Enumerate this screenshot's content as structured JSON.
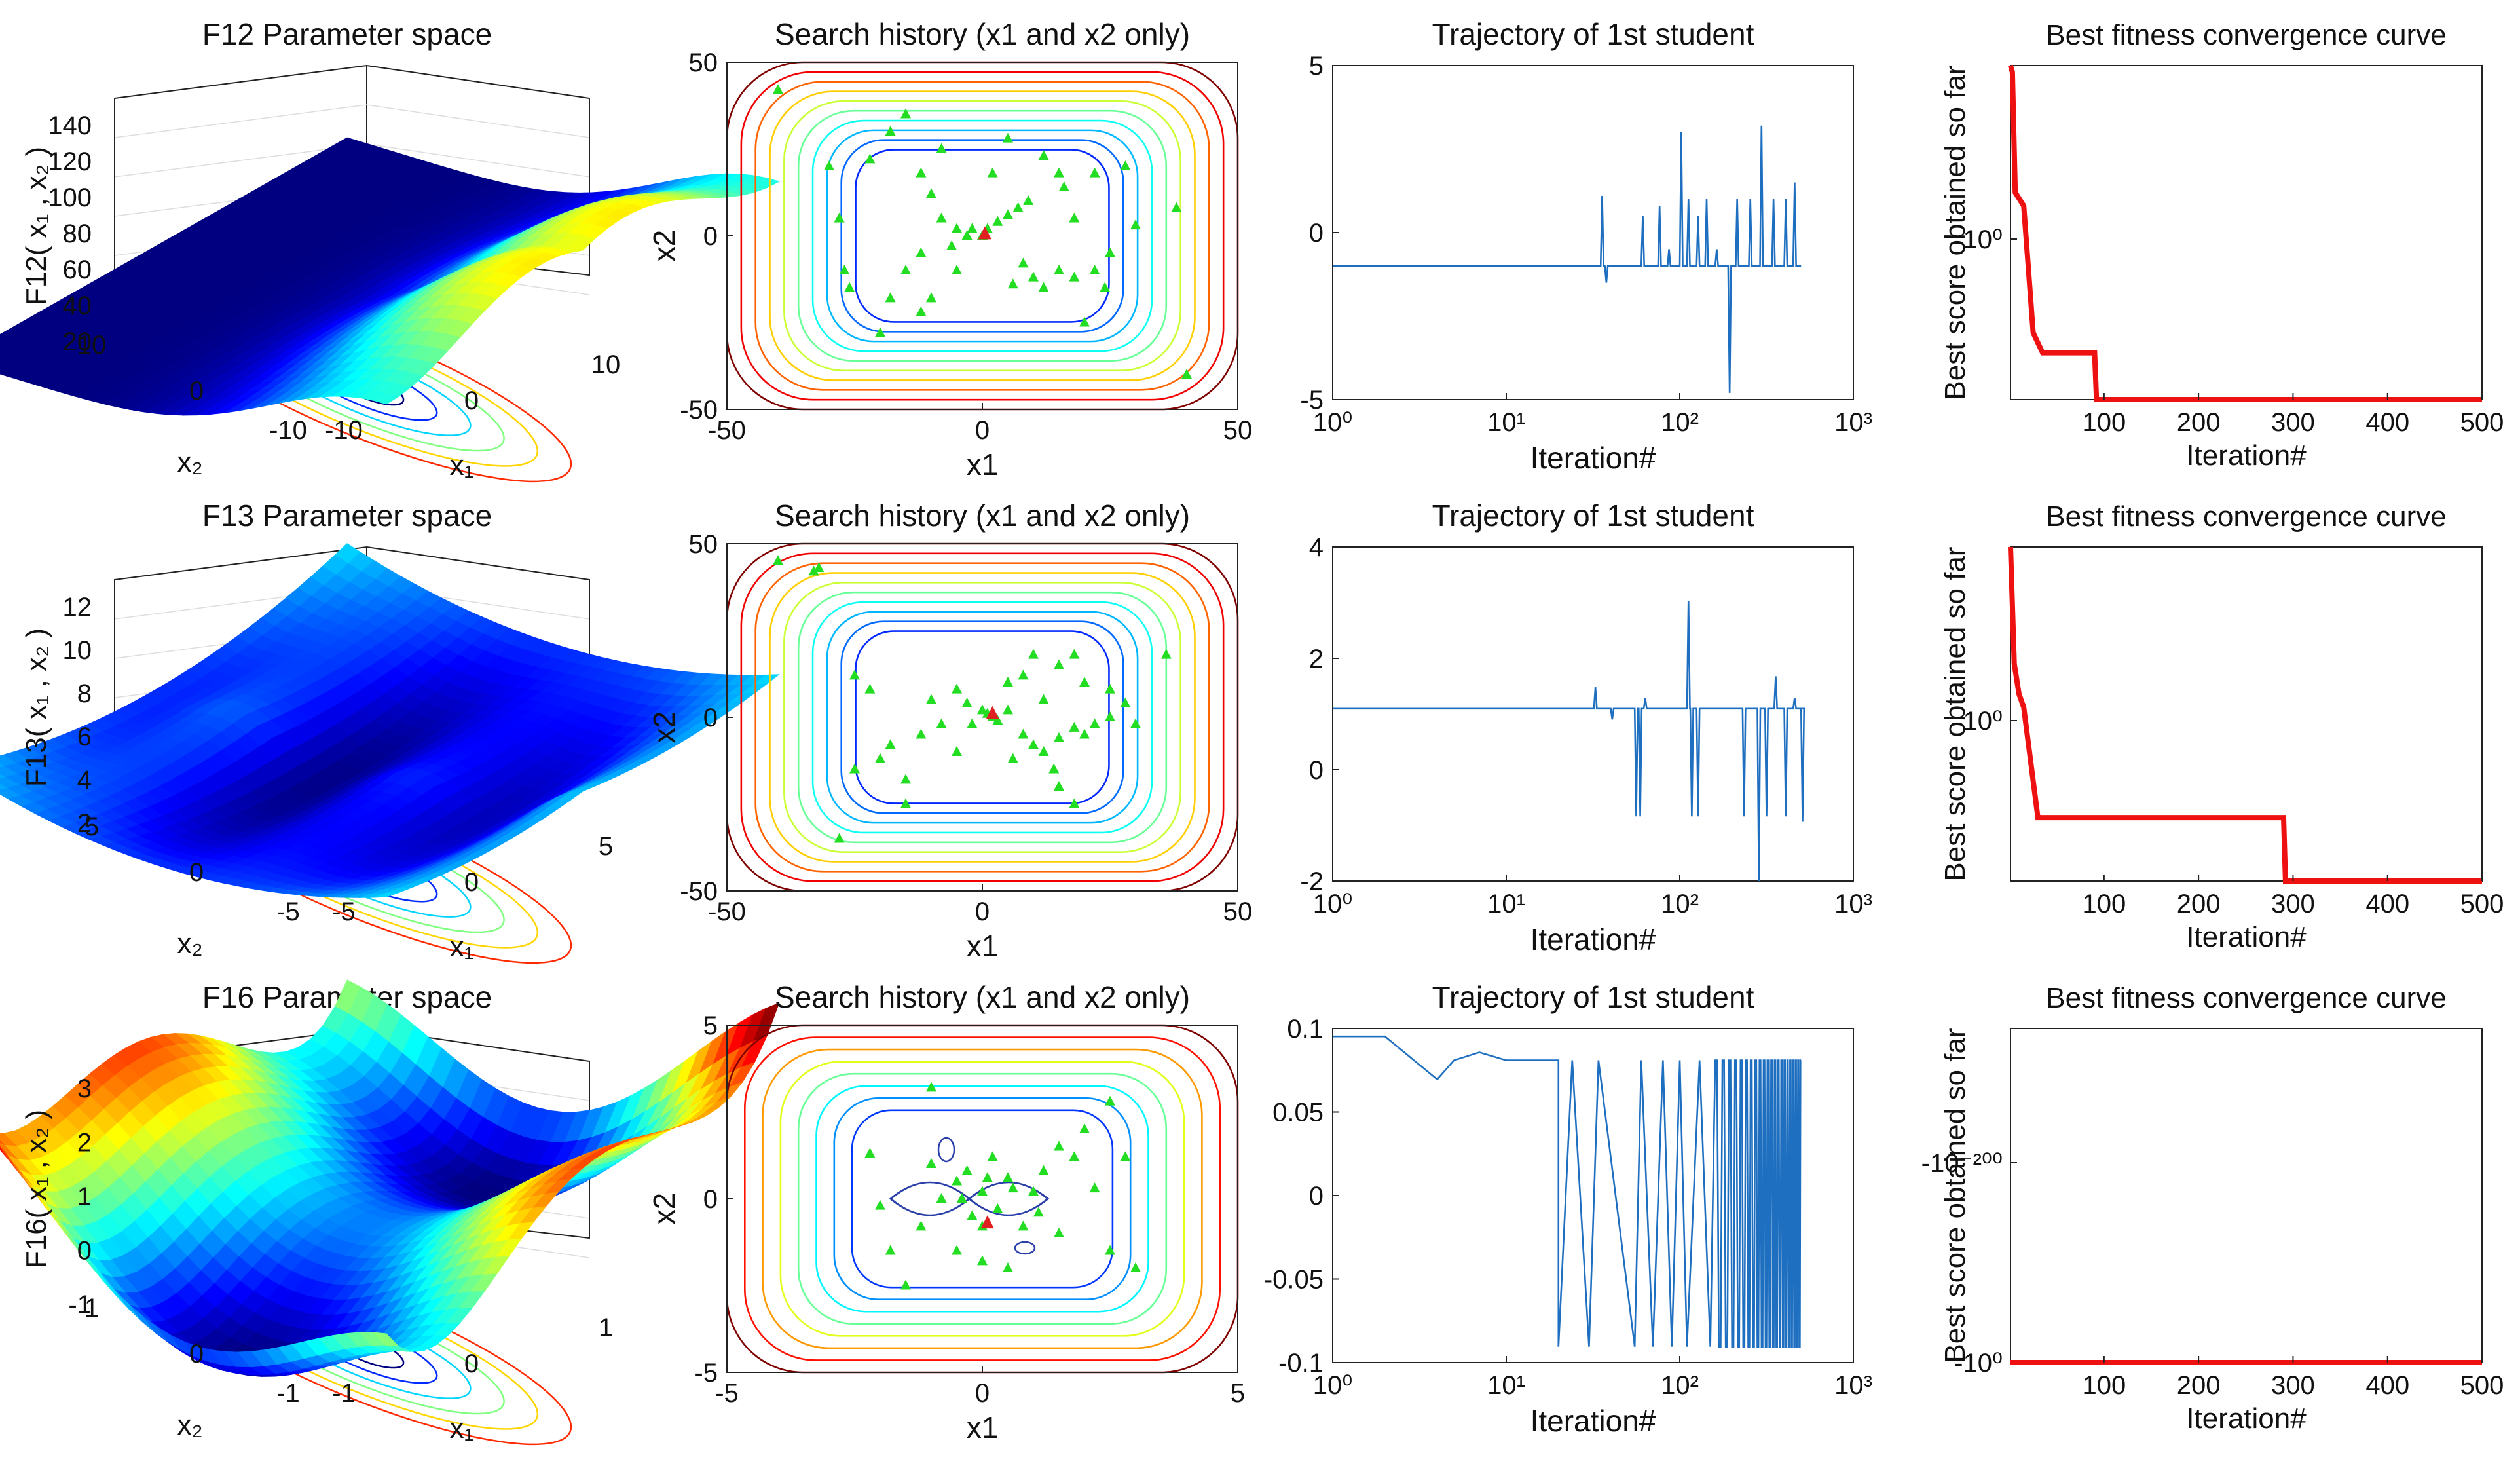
{
  "chart_data": [
    {
      "type": "surface",
      "title": "F12 Parameter space",
      "zlabel": "F12( x₁ , x₂ )",
      "xlabel": "x₁",
      "ylabel": "x₂",
      "zticks": [
        "140",
        "120",
        "100",
        "80",
        "60",
        "40",
        "20"
      ],
      "xticks": [
        "-10",
        "0",
        "10"
      ],
      "yticks": [
        "10",
        "0",
        "-10"
      ],
      "zrange": [
        0,
        140
      ],
      "palette": "jet"
    },
    {
      "type": "scatter",
      "title": "Search history (x1 and x2 only)",
      "xlabel": "x1",
      "ylabel": "x2",
      "xlim": [
        -50,
        50
      ],
      "ylim": [
        -50,
        50
      ],
      "xticks": [
        "-50",
        "0",
        "50"
      ],
      "yticks": [
        "50",
        "0",
        "-50"
      ],
      "points": [
        [
          -40,
          42
        ],
        [
          -15,
          35
        ],
        [
          -18,
          30
        ],
        [
          -22,
          22
        ],
        [
          -28,
          5
        ],
        [
          -27,
          -10
        ],
        [
          -26,
          -15
        ],
        [
          -12,
          18
        ],
        [
          -10,
          12
        ],
        [
          -12,
          -5
        ],
        [
          -8,
          5
        ],
        [
          -5,
          -10
        ],
        [
          -20,
          -28
        ],
        [
          5,
          28
        ],
        [
          12,
          23
        ],
        [
          15,
          18
        ],
        [
          16,
          14
        ],
        [
          18,
          5
        ],
        [
          22,
          18
        ],
        [
          25,
          -5
        ],
        [
          28,
          20
        ],
        [
          -5,
          2
        ],
        [
          -3,
          0
        ],
        [
          -2,
          2
        ],
        [
          0,
          0
        ],
        [
          1,
          2
        ],
        [
          3,
          4
        ],
        [
          5,
          6
        ],
        [
          7,
          8
        ],
        [
          9,
          10
        ],
        [
          -6,
          -3
        ],
        [
          8,
          -8
        ],
        [
          10,
          -12
        ],
        [
          12,
          -15
        ],
        [
          15,
          -10
        ],
        [
          18,
          -12
        ],
        [
          22,
          -10
        ],
        [
          24,
          -15
        ],
        [
          20,
          -25
        ],
        [
          -15,
          -10
        ],
        [
          -10,
          -18
        ],
        [
          -18,
          -18
        ],
        [
          38,
          8
        ],
        [
          40,
          -40
        ],
        [
          -8,
          25
        ],
        [
          2,
          18
        ],
        [
          -12,
          -22
        ],
        [
          6,
          -14
        ],
        [
          30,
          3
        ],
        [
          -30,
          20
        ]
      ],
      "best": [
        [
          0.5,
          0.5
        ]
      ],
      "contours": 10
    },
    {
      "type": "line",
      "title": "Trajectory of 1st student",
      "xlabel": "Iteration#",
      "xscale": "log",
      "xlim": [
        1,
        1000
      ],
      "ylim": [
        -5,
        5
      ],
      "xticks": [
        "10⁰",
        "10¹",
        "10²",
        "10³"
      ],
      "yticks": [
        "5",
        "0",
        "-5"
      ],
      "baseline": -1,
      "spikes": [
        [
          35,
          1.1
        ],
        [
          37,
          -1.5
        ],
        [
          60,
          0.5
        ],
        [
          75,
          0.8
        ],
        [
          85,
          -0.5
        ],
        [
          100,
          3
        ],
        [
          110,
          1
        ],
        [
          125,
          0.5
        ],
        [
          140,
          1
        ],
        [
          160,
          -0.5
        ],
        [
          190,
          -4.8
        ],
        [
          210,
          1
        ],
        [
          250,
          1
        ],
        [
          290,
          3.2
        ],
        [
          340,
          1
        ],
        [
          400,
          1
        ],
        [
          450,
          1.5
        ]
      ]
    },
    {
      "type": "line",
      "title": "Best fitness convergence curve",
      "xlabel": "Iteration#",
      "ylabel": "Best score obtained so far",
      "xlim": [
        0,
        500
      ],
      "xticks": [
        "100",
        "200",
        "300",
        "400",
        "500"
      ],
      "ytick_label": "10⁰",
      "steps": [
        [
          1,
          1.0
        ],
        [
          3,
          0.98
        ],
        [
          6,
          0.62
        ],
        [
          15,
          0.58
        ],
        [
          25,
          0.2
        ],
        [
          35,
          0.14
        ],
        [
          90,
          0.14
        ],
        [
          92,
          0.0
        ],
        [
          500,
          0.0
        ]
      ]
    },
    {
      "type": "surface",
      "title": "F13 Parameter space",
      "zlabel": "F13( x₁ , x₂ )",
      "xlabel": "x₁",
      "ylabel": "x₂",
      "zticks": [
        "12",
        "10",
        "8",
        "6",
        "4",
        "2"
      ],
      "xticks": [
        "-5",
        "0",
        "5"
      ],
      "yticks": [
        "5",
        "0",
        "-5"
      ],
      "zrange": [
        0,
        12
      ],
      "palette": "jet"
    },
    {
      "type": "scatter",
      "title": "Search history (x1 and x2 only)",
      "xlabel": "x1",
      "ylabel": "x2",
      "xlim": [
        -50,
        50
      ],
      "ylim": [
        -50,
        50
      ],
      "xticks": [
        "-50",
        "0",
        "50"
      ],
      "yticks": [
        "50",
        "0",
        "-50"
      ],
      "points": [
        [
          -40,
          45
        ],
        [
          -33,
          42
        ],
        [
          -32,
          43
        ],
        [
          -25,
          12
        ],
        [
          -22,
          8
        ],
        [
          -10,
          5
        ],
        [
          -8,
          -2
        ],
        [
          -12,
          -5
        ],
        [
          -18,
          -8
        ],
        [
          -25,
          -15
        ],
        [
          -20,
          -12
        ],
        [
          -15,
          -18
        ],
        [
          -5,
          -10
        ],
        [
          0,
          2
        ],
        [
          2,
          0
        ],
        [
          -2,
          -2
        ],
        [
          1,
          1
        ],
        [
          3,
          -1
        ],
        [
          5,
          2
        ],
        [
          8,
          -5
        ],
        [
          10,
          -8
        ],
        [
          12,
          -10
        ],
        [
          15,
          -6
        ],
        [
          18,
          -3
        ],
        [
          20,
          -5
        ],
        [
          22,
          -2
        ],
        [
          25,
          0
        ],
        [
          28,
          4
        ],
        [
          30,
          -2
        ],
        [
          15,
          -20
        ],
        [
          18,
          -25
        ],
        [
          14,
          -15
        ],
        [
          8,
          12
        ],
        [
          10,
          18
        ],
        [
          15,
          15
        ],
        [
          18,
          18
        ],
        [
          20,
          10
        ],
        [
          25,
          8
        ],
        [
          36,
          18
        ],
        [
          -28,
          -35
        ],
        [
          -15,
          -25
        ],
        [
          -5,
          8
        ],
        [
          5,
          10
        ],
        [
          12,
          5
        ],
        [
          -3,
          4
        ],
        [
          6,
          -12
        ]
      ],
      "best": [
        [
          2,
          1
        ]
      ],
      "contours": 10
    },
    {
      "type": "line",
      "title": "Trajectory of 1st student",
      "xlabel": "Iteration#",
      "xscale": "log",
      "xlim": [
        1,
        1000
      ],
      "ylim": [
        -2.2,
        4
      ],
      "xticks": [
        "10⁰",
        "10¹",
        "10²",
        "10³"
      ],
      "yticks": [
        "4",
        "2",
        "0",
        "-2"
      ],
      "baseline": 1,
      "spikes": [
        [
          32,
          1.4
        ],
        [
          40,
          0.8
        ],
        [
          55,
          -1
        ],
        [
          58,
          -1
        ],
        [
          62,
          1.2
        ],
        [
          70,
          1
        ],
        [
          110,
          3
        ],
        [
          115,
          -1
        ],
        [
          125,
          -1
        ],
        [
          230,
          -1
        ],
        [
          280,
          -2.2
        ],
        [
          310,
          -1
        ],
        [
          350,
          1.6
        ],
        [
          400,
          -1
        ],
        [
          450,
          1.2
        ],
        [
          500,
          -1.1
        ]
      ]
    },
    {
      "type": "line",
      "title": "Best fitness convergence curve",
      "xlabel": "Iteration#",
      "ylabel": "Best score obtained so far",
      "xlim": [
        0,
        500
      ],
      "xticks": [
        "100",
        "200",
        "300",
        "400",
        "500"
      ],
      "ytick_label": "10⁰",
      "steps": [
        [
          1,
          1.0
        ],
        [
          5,
          0.65
        ],
        [
          10,
          0.56
        ],
        [
          15,
          0.52
        ],
        [
          30,
          0.19
        ],
        [
          290,
          0.19
        ],
        [
          292,
          0.0
        ],
        [
          500,
          0.0
        ]
      ]
    },
    {
      "type": "surface",
      "title": "F16 Parameter space",
      "zlabel": "F16( x₁ , x₂ )",
      "xlabel": "x₁",
      "ylabel": "x₂",
      "zticks": [
        "3",
        "2",
        "1",
        "0",
        "-1"
      ],
      "xticks": [
        "-1",
        "0",
        "1"
      ],
      "yticks": [
        "1",
        "0",
        "-1"
      ],
      "zrange": [
        -1,
        3
      ],
      "palette": "jet"
    },
    {
      "type": "scatter",
      "title": "Search history (x1 and x2 only)",
      "xlabel": "x1",
      "ylabel": "x2",
      "xlim": [
        -5,
        5
      ],
      "ylim": [
        -5,
        5
      ],
      "xticks": [
        "-5",
        "0",
        "5"
      ],
      "yticks": [
        "5",
        "0",
        "-5"
      ],
      "points": [
        [
          -1,
          3.2
        ],
        [
          -2.2,
          1.3
        ],
        [
          -2,
          -0.2
        ],
        [
          -1.8,
          -1.5
        ],
        [
          -1.5,
          -2.5
        ],
        [
          -1,
          1
        ],
        [
          -0.5,
          0.5
        ],
        [
          0,
          0.2
        ],
        [
          0.3,
          -0.3
        ],
        [
          0.5,
          0.6
        ],
        [
          -0.2,
          -0.5
        ],
        [
          0.8,
          -0.8
        ],
        [
          1.2,
          0.8
        ],
        [
          1.5,
          1.5
        ],
        [
          2,
          2
        ],
        [
          2.5,
          2.8
        ],
        [
          1.8,
          1.2
        ],
        [
          2.2,
          0.3
        ],
        [
          1.5,
          -1
        ],
        [
          2.5,
          -1.5
        ],
        [
          3,
          -2
        ],
        [
          -0.5,
          -1.5
        ],
        [
          0,
          -1.8
        ],
        [
          0.5,
          -2
        ],
        [
          -1.2,
          -0.8
        ],
        [
          0.2,
          1.2
        ],
        [
          -0.3,
          0.8
        ],
        [
          0.6,
          0.3
        ],
        [
          1,
          0.2
        ],
        [
          -0.8,
          0
        ],
        [
          0.1,
          0.6
        ],
        [
          -0.4,
          0
        ],
        [
          0,
          -0.8
        ],
        [
          1.1,
          -0.4
        ],
        [
          2.8,
          1.2
        ]
      ],
      "best": [
        [
          0.1,
          -0.7
        ]
      ],
      "contours": 8
    },
    {
      "type": "line",
      "title": "Trajectory of 1st student",
      "xlabel": "Iteration#",
      "xscale": "log",
      "xlim": [
        1,
        1000
      ],
      "ylim": [
        -0.1,
        0.11
      ],
      "xticks": [
        "10⁰",
        "10¹",
        "10²",
        "10³"
      ],
      "yticks": [
        "0.1",
        "0.05",
        "0",
        "-0.05",
        "-0.1"
      ],
      "osc": {
        "high": 0.09,
        "low": -0.09,
        "start": 20,
        "end": 500
      }
    },
    {
      "type": "line",
      "title": "Best fitness convergence curve",
      "xlabel": "Iteration#",
      "ylabel": "Best score obtained so far",
      "xlim": [
        0,
        500
      ],
      "xticks": [
        "100",
        "200",
        "300",
        "400",
        "500"
      ],
      "ytick_label": "-10⁻²⁰⁰",
      "ytick_bottom": "-10⁰",
      "steps": [
        [
          1,
          0.0
        ],
        [
          500,
          0.0
        ]
      ]
    }
  ]
}
